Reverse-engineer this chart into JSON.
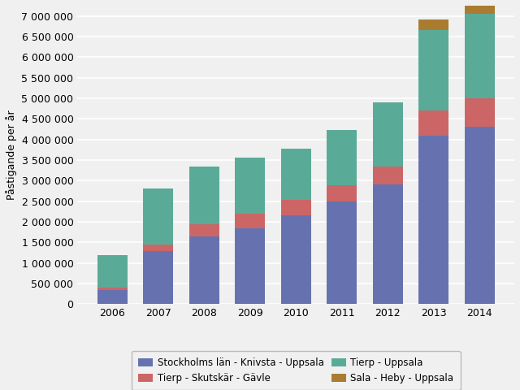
{
  "years": [
    2006,
    2007,
    2008,
    2009,
    2010,
    2011,
    2012,
    2013,
    2014
  ],
  "series": {
    "Stockholms län - Knivsta - Uppsala": [
      350000,
      1300000,
      1650000,
      1850000,
      2150000,
      2500000,
      2900000,
      4100000,
      4300000
    ],
    "Tierp - Skutskär - Gävle": [
      50000,
      150000,
      300000,
      350000,
      380000,
      380000,
      450000,
      600000,
      700000
    ],
    "Tierp - Uppsala": [
      800000,
      1350000,
      1400000,
      1350000,
      1250000,
      1350000,
      1550000,
      1950000,
      2050000
    ],
    "Sala - Heby - Uppsala": [
      0,
      0,
      0,
      0,
      0,
      0,
      0,
      270000,
      320000
    ]
  },
  "colors": {
    "Stockholms län - Knivsta - Uppsala": "#6672b0",
    "Tierp - Skutskär - Gävle": "#cc6666",
    "Tierp - Uppsala": "#5aaa98",
    "Sala - Heby - Uppsala": "#aa7c30"
  },
  "ylabel": "Påstigande per år",
  "ylim": [
    0,
    7250000
  ],
  "yticks": [
    0,
    500000,
    1000000,
    1500000,
    2000000,
    2500000,
    3000000,
    3500000,
    4000000,
    4500000,
    5000000,
    5500000,
    6000000,
    6500000,
    7000000
  ],
  "background_color": "#f0f0f0",
  "grid_color": "#ffffff",
  "bar_width": 0.65,
  "legend_order": [
    "Stockholms län - Knivsta - Uppsala",
    "Tierp - Skutskär - Gävle",
    "Tierp - Uppsala",
    "Sala - Heby - Uppsala"
  ]
}
